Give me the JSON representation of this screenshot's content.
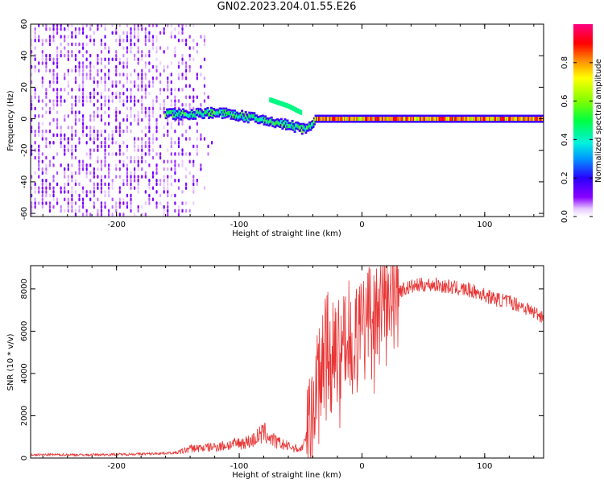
{
  "title": "GN02.2023.204.01.55.E26",
  "chart_data": [
    {
      "type": "heatmap",
      "xlabel": "Height of straight line (km)",
      "ylabel": "Frequency (Hz)",
      "xlim": [
        -270,
        148
      ],
      "ylim": [
        -62,
        60
      ],
      "x_ticks": [
        -200,
        -100,
        0,
        100
      ],
      "y_ticks": [
        -60,
        -40,
        -20,
        0,
        20,
        40,
        60
      ],
      "grid": false,
      "colorbar": {
        "label": "Normalized spectral amplitude",
        "range": [
          0,
          1
        ],
        "ticks": [
          0.0,
          0.2,
          0.4,
          0.6,
          0.8
        ],
        "colormap": "hsv (white-violet-blue-cyan-green-yellow-red-magenta)"
      },
      "features": [
        {
          "name": "broadband noise region",
          "x_range": [
            -270,
            -150
          ],
          "freq_range": [
            -60,
            60
          ],
          "amplitude": 0.15
        },
        {
          "name": "signal trace",
          "points": [
            [
              -160,
              3
            ],
            [
              -140,
              3
            ],
            [
              -120,
              4
            ],
            [
              -100,
              2
            ],
            [
              -80,
              -1
            ],
            [
              -60,
              -4
            ],
            [
              -45,
              -7
            ],
            [
              -38,
              0
            ],
            [
              0,
              0
            ],
            [
              60,
              0
            ],
            [
              100,
              0
            ],
            [
              148,
              0
            ]
          ],
          "peak_amplitude": 0.95
        },
        {
          "name": "side branch",
          "points": [
            [
              -75,
              12
            ],
            [
              -60,
              8
            ],
            [
              -50,
              4
            ]
          ],
          "amplitude": 0.45
        }
      ]
    },
    {
      "type": "line",
      "xlabel": "Height of straight line (km)",
      "ylabel": "SNR (10 * v/v)",
      "xlim": [
        -270,
        148
      ],
      "ylim": [
        0,
        9100
      ],
      "x_ticks": [
        -200,
        -100,
        0,
        100
      ],
      "y_ticks": [
        0,
        2000,
        4000,
        6000,
        8000
      ],
      "grid": false,
      "series": [
        {
          "color": "#e83535",
          "x": [
            -270,
            -250,
            -225,
            -200,
            -175,
            -150,
            -140,
            -125,
            -110,
            -100,
            -90,
            -80,
            -70,
            -60,
            -50,
            -45,
            -42,
            -38,
            -35,
            -32,
            -28,
            -25,
            -20,
            -15,
            -10,
            -5,
            0,
            5,
            10,
            15,
            20,
            25,
            30,
            40,
            50,
            60,
            70,
            80,
            90,
            100,
            110,
            120,
            130,
            140,
            148
          ],
          "y": [
            150,
            160,
            150,
            170,
            200,
            250,
            450,
            500,
            600,
            700,
            800,
            1200,
            750,
            550,
            400,
            900,
            2000,
            3200,
            3500,
            4200,
            5000,
            4800,
            5200,
            5500,
            5400,
            5800,
            6100,
            6400,
            6800,
            7200,
            7600,
            7800,
            7900,
            8100,
            8200,
            8200,
            8100,
            8000,
            7900,
            7700,
            7500,
            7400,
            7200,
            6900,
            6700
          ]
        }
      ]
    }
  ]
}
